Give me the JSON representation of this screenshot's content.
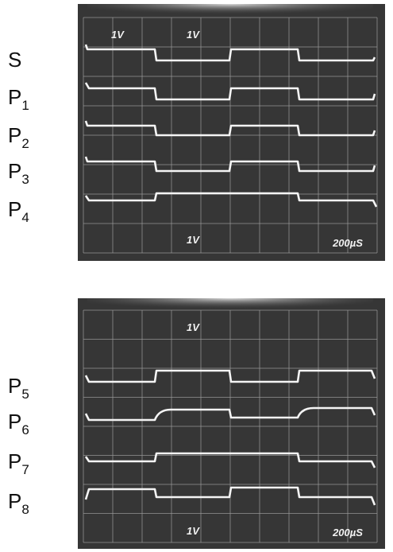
{
  "panels": [
    {
      "labels": [
        {
          "letter": "S"
        },
        {
          "letter": "P",
          "subscript": "1"
        },
        {
          "letter": "P",
          "subscript": "2"
        },
        {
          "letter": "P",
          "subscript": "3"
        },
        {
          "letter": "P",
          "subscript": "4"
        }
      ],
      "screen_texts": {
        "top_left": "1V",
        "top_center": "1V",
        "bottom_center": "1V",
        "timebase": "200µS"
      }
    },
    {
      "labels": [
        {
          "letter": "P",
          "subscript": "5"
        },
        {
          "letter": "P",
          "subscript": "6"
        },
        {
          "letter": "P",
          "subscript": "7"
        },
        {
          "letter": "P",
          "subscript": "8"
        }
      ],
      "screen_texts": {
        "top_center": "1V",
        "bottom_center": "1V",
        "timebase": "200µS"
      }
    }
  ]
}
